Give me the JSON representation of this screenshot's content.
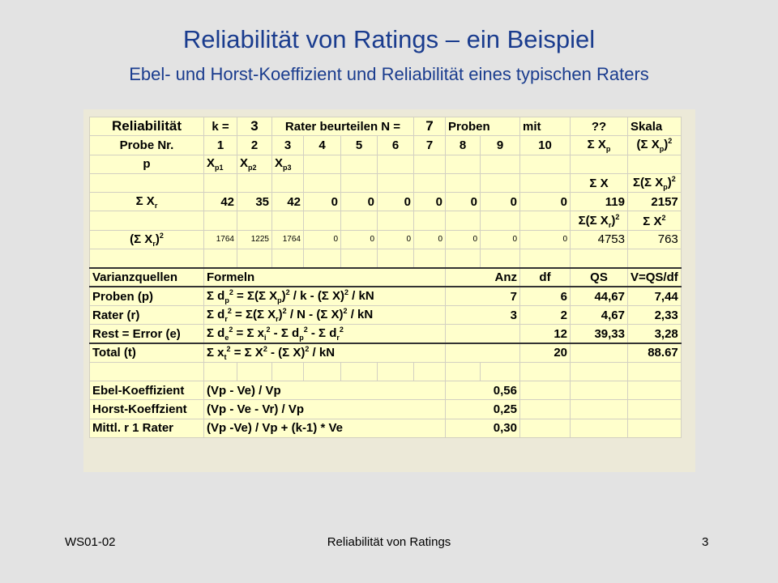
{
  "slide": {
    "title": "Reliabilität von Ratings – ein Beispiel",
    "subtitle": "Ebel- und Horst-Koeffizient und Reliabilität eines typischen Raters",
    "footer_left": "WS01-02",
    "footer_center": "Reliabilität von Ratings",
    "footer_right": "3"
  },
  "table": {
    "r1": {
      "a": "Reliabilität",
      "b": "k =",
      "c": "3",
      "d": "Rater beurteilen N =",
      "e": "7",
      "f": "Proben",
      "g": "mit",
      "h": "??",
      "i": "Skala"
    },
    "r2": {
      "a": "Probe Nr.",
      "cols": [
        "1",
        "2",
        "3",
        "4",
        "5",
        "6",
        "7",
        "8",
        "9",
        "10"
      ],
      "sx": "Σ X",
      "sx2": "(Σ X"
    },
    "r3": {
      "a": "p"
    },
    "r4": {
      "sumx": "Σ X",
      "sumsq": "Σ(Σ X"
    },
    "r5": {
      "a": "Σ X",
      "vals": [
        "42",
        "35",
        "42",
        "0",
        "0",
        "0",
        "0",
        "0",
        "0",
        "0"
      ],
      "s1": "119",
      "s2": "2157"
    },
    "r6": {
      "s1": "Σ(Σ X",
      "s2": "Σ X"
    },
    "r7": {
      "a": "(Σ X",
      "vals": [
        "1764",
        "1225",
        "1764",
        "0",
        "0",
        "0",
        "0",
        "0",
        "0",
        "0"
      ],
      "s1": "4753",
      "s2": "763"
    },
    "hdr": {
      "a": "Varianzquellen",
      "b": "Formeln",
      "anz": "Anz",
      "df": "df",
      "qs": "QS",
      "v": "V=QS/df"
    },
    "p": {
      "a": "Proben (p)",
      "anz": "7",
      "df": "6",
      "qs": "44,67",
      "v": "7,44"
    },
    "rr": {
      "a": "Rater (r)",
      "anz": "3",
      "df": "2",
      "qs": "4,67",
      "v": "2,33"
    },
    "e": {
      "a": "Rest = Error (e)",
      "df": "12",
      "qs": "39,33",
      "v": "3,28"
    },
    "t": {
      "a": "Total (t)",
      "df": "20",
      "v": "88.67"
    },
    "ebel": {
      "a": "Ebel-Koeffizient",
      "f": "(Vp - Ve) / Vp",
      "v": "0,56"
    },
    "horst": {
      "a": "Horst-Koeffzient",
      "f": "(Vp - Ve - Vr) / Vp",
      "v": "0,25"
    },
    "mittl": {
      "a": "Mittl. r 1 Rater",
      "f": "(Vp -Ve) / Vp + (k-1) * Ve",
      "v": "0,30"
    }
  }
}
